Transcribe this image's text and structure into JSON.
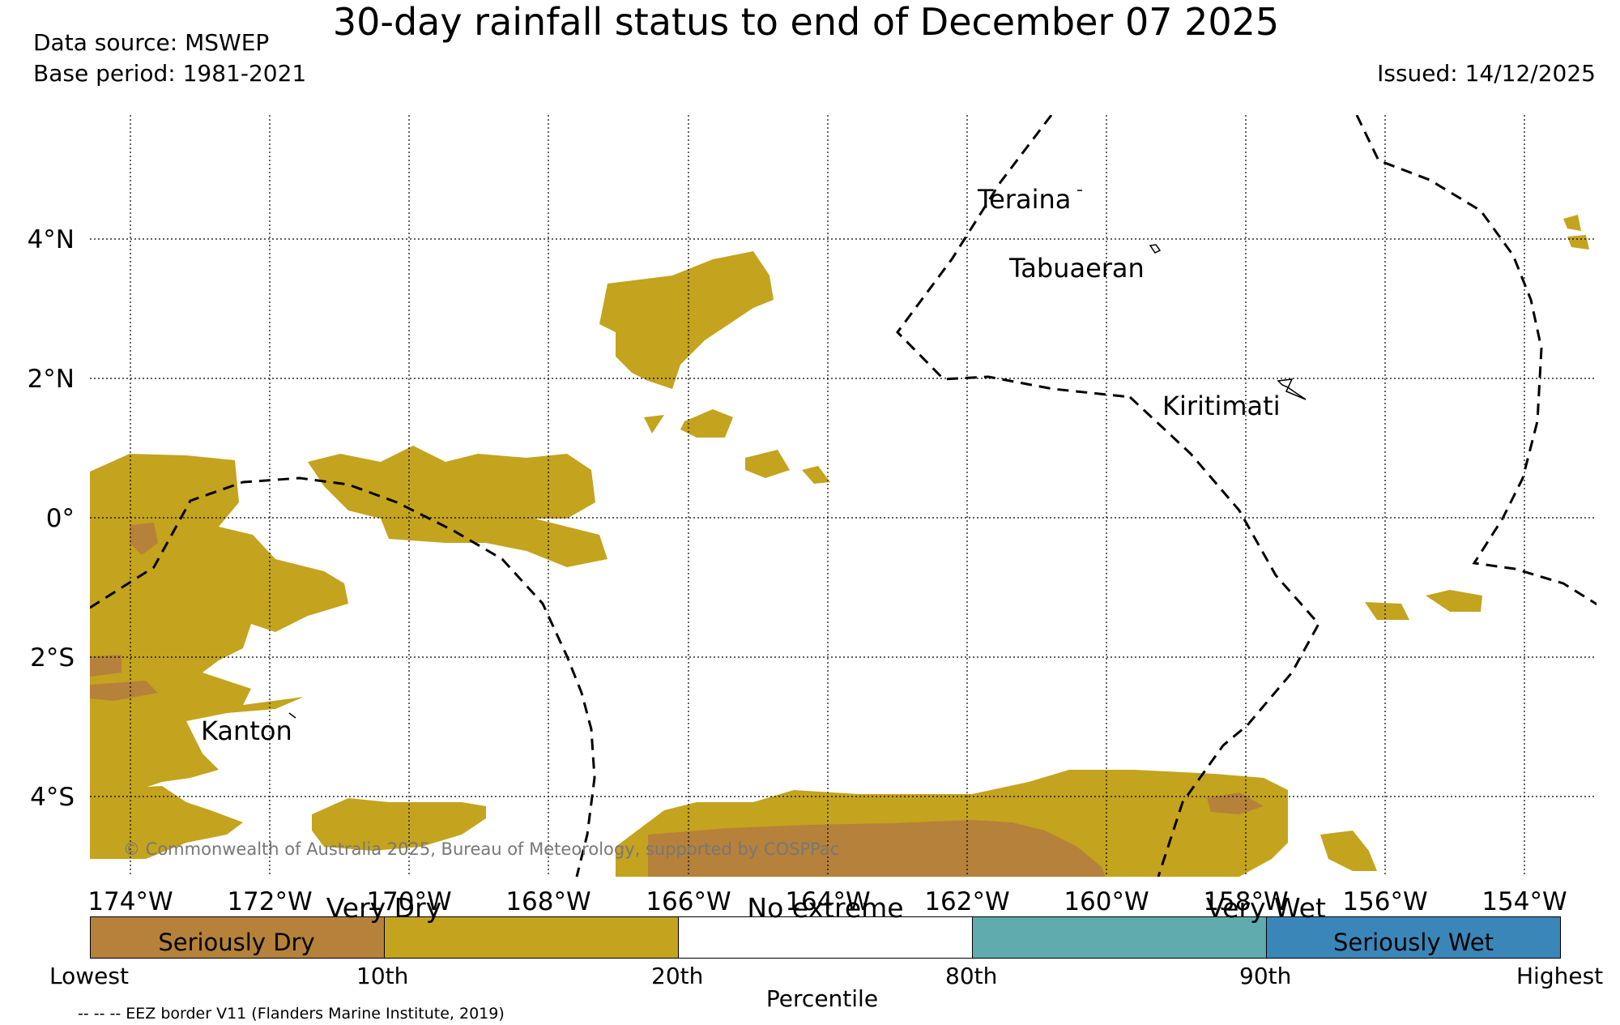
{
  "header": {
    "title": "30-day rainfall status to end of December 07 2025",
    "data_source": "Data source: MSWEP",
    "base_period": "Base period: 1981-2021",
    "issued": "Issued: 14/12/2025"
  },
  "map": {
    "lon_ticks": [
      "174°W",
      "172°W",
      "170°W",
      "168°W",
      "166°W",
      "164°W",
      "162°W",
      "160°W",
      "158°W",
      "156°W",
      "154°W"
    ],
    "lat_ticks": [
      "4°N",
      "2°N",
      "0°",
      "2°S",
      "4°S"
    ],
    "places": {
      "teraina": "Teraina",
      "tabuaeran": "Tabuaeran",
      "kiritimati": "Kiritimati",
      "kanton": "Kanton"
    },
    "copyright": "© Commonwealth of Australia 2025, Bureau of Meteorology, supported by COSPPac",
    "colors": {
      "seriously_dry": "#b5813b",
      "very_dry": "#c4a31e",
      "no_extreme": "#ffffff",
      "very_wet": "#5fabad",
      "seriously_wet": "#3a86b8",
      "eez_border": "#000000"
    }
  },
  "legend": {
    "groups": {
      "very_dry": "Very Dry",
      "no_extreme": "No extreme",
      "very_wet": "Very Wet"
    },
    "categories": {
      "seriously_dry": "Seriously Dry",
      "seriously_wet": "Seriously Wet"
    },
    "percentiles": [
      "Lowest",
      "10th",
      "20th",
      "80th",
      "90th",
      "Highest"
    ],
    "axis_title": "Percentile",
    "eez_note": "-- -- -- EEZ border V11 (Flanders Marine Institute, 2019)"
  }
}
